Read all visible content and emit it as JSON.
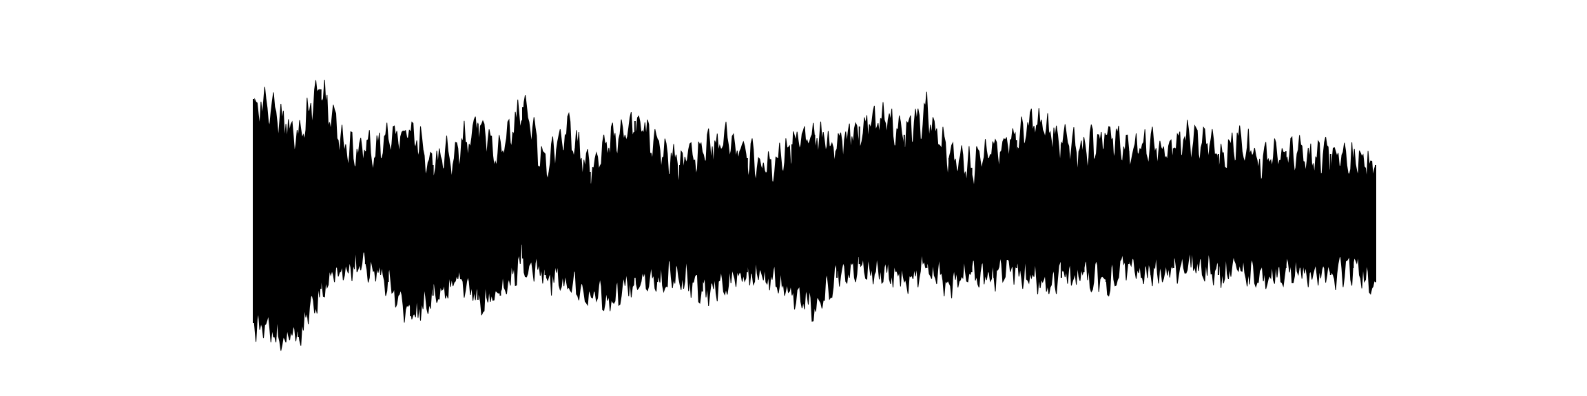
{
  "chart_data": {
    "type": "area",
    "title": "",
    "xlabel": "",
    "ylabel": "",
    "axes_visible": false,
    "grid": false,
    "legend": "none",
    "fill_color": "#000000",
    "background_color": "#ffffff",
    "x": [
      0,
      0.02,
      0.04,
      0.06,
      0.08,
      0.1,
      0.12,
      0.14,
      0.16,
      0.18,
      0.2,
      0.22,
      0.24,
      0.26,
      0.28,
      0.3,
      0.32,
      0.34,
      0.36,
      0.38,
      0.4,
      0.42,
      0.44,
      0.46,
      0.48,
      0.5,
      0.52,
      0.54,
      0.56,
      0.58,
      0.6,
      0.62,
      0.64,
      0.66,
      0.68,
      0.7,
      0.72,
      0.74,
      0.76,
      0.78,
      0.8,
      0.82,
      0.84,
      0.86,
      0.88,
      0.9,
      0.92,
      0.94,
      0.96,
      0.98,
      1.0
    ],
    "ylim": [
      -1,
      1
    ],
    "upper": [
      0.78,
      0.65,
      0.52,
      0.85,
      0.42,
      0.4,
      0.45,
      0.55,
      0.3,
      0.38,
      0.6,
      0.35,
      0.72,
      0.3,
      0.55,
      0.25,
      0.45,
      0.62,
      0.42,
      0.3,
      0.38,
      0.48,
      0.35,
      0.28,
      0.45,
      0.52,
      0.4,
      0.58,
      0.62,
      0.52,
      0.68,
      0.35,
      0.28,
      0.42,
      0.48,
      0.62,
      0.45,
      0.38,
      0.52,
      0.4,
      0.45,
      0.42,
      0.5,
      0.38,
      0.45,
      0.3,
      0.4,
      0.35,
      0.38,
      0.32,
      0.3
    ],
    "lower": [
      -0.85,
      -0.95,
      -0.95,
      -0.6,
      -0.45,
      -0.42,
      -0.55,
      -0.8,
      -0.65,
      -0.5,
      -0.68,
      -0.65,
      -0.38,
      -0.5,
      -0.55,
      -0.62,
      -0.7,
      -0.52,
      -0.55,
      -0.48,
      -0.62,
      -0.55,
      -0.48,
      -0.52,
      -0.62,
      -0.72,
      -0.52,
      -0.42,
      -0.48,
      -0.52,
      -0.45,
      -0.55,
      -0.48,
      -0.52,
      -0.45,
      -0.55,
      -0.52,
      -0.48,
      -0.55,
      -0.42,
      -0.5,
      -0.45,
      -0.42,
      -0.5,
      -0.45,
      -0.52,
      -0.45,
      -0.48,
      -0.5,
      -0.45,
      -0.55
    ]
  }
}
